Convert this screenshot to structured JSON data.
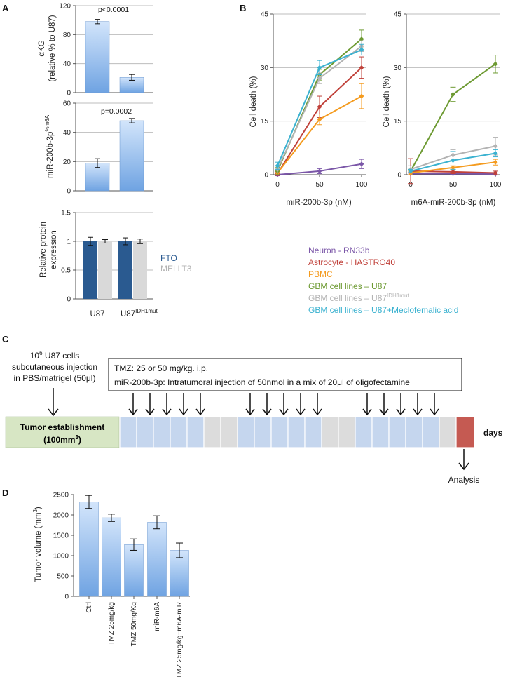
{
  "panel_labels": {
    "a": "A",
    "b": "B",
    "c": "C",
    "d": "D"
  },
  "colors": {
    "bar_light": "#8fb8ea",
    "bar_dark": "#2a5a90",
    "bar_gray": "#d9d9d9",
    "neuron": "#7b57a8",
    "astrocyte": "#c0413a",
    "pbmc": "#f49b1f",
    "u87": "#6d9a32",
    "u87idh": "#b3b3b3",
    "meclo": "#3bb2d0",
    "establishment": "#d7e6c4",
    "treatment": "#c5d6ee",
    "rest": "#dcdcdc",
    "analysis_box": "#c55a52"
  },
  "chart_data": [
    {
      "id": "A1",
      "type": "bar",
      "categories": [
        "U87",
        "U87IDH1mut"
      ],
      "values": [
        98,
        21
      ],
      "errors": [
        3,
        4
      ],
      "ylabel_line1": "αKG",
      "ylabel_line2": "(relative % to U87)",
      "ylim": [
        0,
        120
      ],
      "yticks": [
        "0",
        "40",
        "80",
        "120"
      ],
      "annotation": "p<0.0001"
    },
    {
      "id": "A2",
      "type": "bar",
      "categories": [
        "U87",
        "U87IDH1mut"
      ],
      "values": [
        19,
        48
      ],
      "errors": [
        3,
        1.5
      ],
      "ylabel_main": "miR-200b-3p",
      "ylabel_sup": "%m6A",
      "ylim": [
        0,
        60
      ],
      "yticks": [
        "0",
        "20",
        "40",
        "60"
      ],
      "annotation": "p=0.0002"
    },
    {
      "id": "A3",
      "type": "bar",
      "categories": [
        "U87",
        "U87IDH1mut"
      ],
      "series": [
        {
          "name": "FTO",
          "values": [
            1.0,
            1.0
          ],
          "errors": [
            0.07,
            0.06
          ]
        },
        {
          "name": "MELLT3",
          "values": [
            1.0,
            1.0
          ],
          "errors": [
            0.03,
            0.04
          ]
        }
      ],
      "ylabel_line1": "Relative protein",
      "ylabel_line2": "expression",
      "ylim": [
        0,
        1.5
      ],
      "yticks": [
        "0",
        "0.5",
        "1",
        "1.5"
      ],
      "xtick_labels": [
        {
          "main": "U87",
          "sup": ""
        },
        {
          "main": "U87",
          "sup": "IDH1mut"
        }
      ]
    },
    {
      "id": "B1",
      "type": "line",
      "x": [
        0,
        50,
        100
      ],
      "xticks": [
        "0",
        "50",
        "100"
      ],
      "xlabel": "miR-200b-3p (nM)",
      "ylabel": "Cell death (%)",
      "ylim": [
        0,
        45
      ],
      "yticks": [
        "0",
        "15",
        "30",
        "45"
      ],
      "series": [
        {
          "name": "Neuron - RN33b",
          "values": [
            0,
            1,
            3
          ],
          "errors": [
            0.3,
            0.7,
            1.3
          ]
        },
        {
          "name": "Astrocyte - HASTRO40",
          "values": [
            0.3,
            19,
            30
          ],
          "errors": [
            0.5,
            3,
            3
          ]
        },
        {
          "name": "PBMC",
          "values": [
            0.5,
            15.5,
            22
          ],
          "errors": [
            0.5,
            1.5,
            3.5
          ]
        },
        {
          "name": "GBM cell lines – U87",
          "values": [
            1,
            28,
            38
          ],
          "errors": [
            1,
            1.5,
            2.5
          ]
        },
        {
          "name": "GBM cell lines – U87IDH1mut",
          "values": [
            1.5,
            27,
            36
          ],
          "errors": [
            1,
            1.5,
            1.5
          ]
        },
        {
          "name": "GBM cell lines – U87+Meclofemalic acid",
          "values": [
            2.5,
            30,
            35
          ],
          "errors": [
            1,
            2,
            1.5
          ]
        }
      ]
    },
    {
      "id": "B2",
      "type": "line",
      "x": [
        0,
        50,
        100
      ],
      "xticks": [
        "0",
        "50",
        "100"
      ],
      "xlabel": "m6A-miR-200b-3p (nM)",
      "ylabel": "Cell death (%)",
      "ylim": [
        0,
        45
      ],
      "yticks": [
        "0",
        "15",
        "30",
        "45"
      ],
      "series": [
        {
          "name": "Neuron - RN33b",
          "values": [
            0.3,
            0.3,
            0.2
          ],
          "errors": [
            0.3,
            0.3,
            0.3
          ]
        },
        {
          "name": "Astrocyte - HASTRO40",
          "values": [
            1,
            0.8,
            0.5
          ],
          "errors": [
            3.5,
            0.5,
            0.5
          ]
        },
        {
          "name": "PBMC",
          "values": [
            0.5,
            2,
            3.5
          ],
          "errors": [
            0.5,
            0.5,
            0.8
          ]
        },
        {
          "name": "GBM cell lines – U87",
          "values": [
            1,
            22.5,
            31
          ],
          "errors": [
            0.5,
            2,
            2.5
          ]
        },
        {
          "name": "GBM cell lines – U87IDH1mut",
          "values": [
            1.5,
            5.5,
            8
          ],
          "errors": [
            1,
            1.5,
            2.5
          ]
        },
        {
          "name": "GBM cell lines – U87+Meclofemalic acid",
          "values": [
            1,
            4,
            6
          ],
          "errors": [
            0.5,
            2.5,
            1
          ]
        }
      ]
    },
    {
      "id": "D",
      "type": "bar",
      "categories": [
        "Ctrl",
        "TMZ 25mg/kg",
        "TMZ 50mg/Kg",
        "miR-m6A",
        "TMZ 25mg/kg+m6A-miR"
      ],
      "values": [
        2320,
        1930,
        1270,
        1820,
        1130
      ],
      "errors": [
        160,
        90,
        140,
        160,
        180
      ],
      "ylabel": "Tumor volume (mm³)",
      "ylim": [
        0,
        2500
      ],
      "yticks": [
        "0",
        "500",
        "1000",
        "1500",
        "2000",
        "2500"
      ]
    }
  ],
  "legend_b": {
    "neuron": "Neuron - RN33b",
    "astrocyte": "Astrocyte - HASTRO40",
    "pbmc": "PBMC",
    "u87": "GBM cell lines – U87",
    "u87idh_main": "GBM cell lines – U87",
    "u87idh_sup": "IDH1mut",
    "meclo": "GBM cell lines – U87+Meclofemalic acid"
  },
  "timeline": {
    "cells_sup": "6",
    "cells_base": "10",
    "cells_rest": " U87 cells",
    "injection_line2": "subcutaneous injection",
    "injection_line3": "in PBS/matrigel (50μl)",
    "treatment_line1": "TMZ: 25 or 50 mg/kg. i.p.",
    "treatment_line2": "miR-200b-3p: Intratumoral injection of 50nmol in a mix of 20μl of oligofectamine",
    "establishment_line1": "Tumor establishment",
    "establishment_line2_main": "(100mm",
    "establishment_line2_sup": "3",
    "establishment_line2_end": ")",
    "days": "days",
    "analysis": "Analysis",
    "cells": [
      "treat",
      "treat",
      "treat",
      "treat",
      "treat",
      "rest",
      "rest",
      "treat",
      "treat",
      "treat",
      "treat",
      "treat",
      "rest",
      "rest",
      "treat",
      "treat",
      "treat",
      "treat",
      "treat",
      "rest",
      "analysis"
    ]
  }
}
